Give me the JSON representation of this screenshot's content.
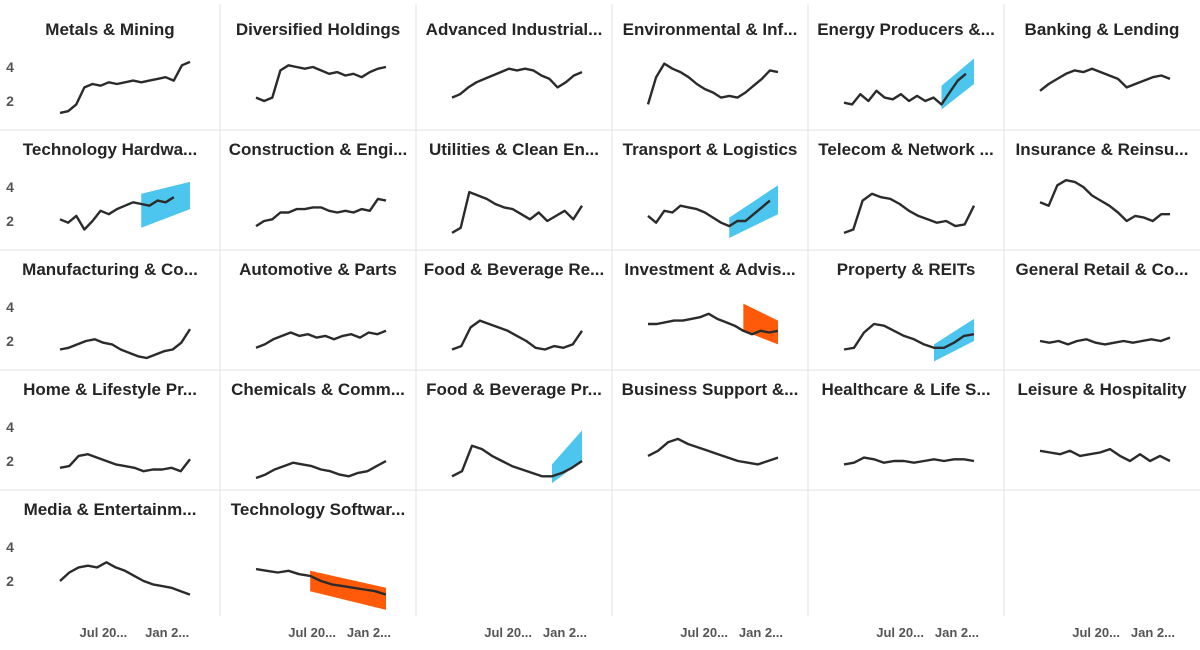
{
  "colors": {
    "line": "#2b2b2b",
    "forecast_up": "#4cc6ee",
    "forecast_down": "#ff5a0a",
    "divider": "#e3e3e3",
    "text": "#252525",
    "axis_text": "#555555"
  },
  "chart_data": {
    "type": "line",
    "layout": "small-multiples",
    "columns": 6,
    "y_ticks": [
      "4",
      "2"
    ],
    "x_ticks": [
      "Jul 20...",
      "Jan 2..."
    ],
    "x_range": [
      "2023-01",
      "2024-04"
    ],
    "ylim": [
      1,
      5
    ],
    "grid": false,
    "panels": [
      {
        "title": "Metals & Mining",
        "y": [
          1.3,
          1.4,
          1.8,
          2.8,
          3.0,
          2.9,
          3.1,
          3.0,
          3.1,
          3.2,
          3.1,
          3.2,
          3.3,
          3.4,
          3.2,
          4.1,
          4.3
        ]
      },
      {
        "title": "Diversified Holdings",
        "y": [
          2.2,
          2.0,
          2.2,
          3.8,
          4.1,
          4.0,
          3.9,
          4.0,
          3.8,
          3.6,
          3.7,
          3.5,
          3.6,
          3.4,
          3.7,
          3.9,
          4.0
        ]
      },
      {
        "title": "Advanced Industrial...",
        "y": [
          2.2,
          2.4,
          2.8,
          3.1,
          3.3,
          3.5,
          3.7,
          3.9,
          3.8,
          3.9,
          3.8,
          3.5,
          3.3,
          2.8,
          3.1,
          3.5,
          3.7
        ]
      },
      {
        "title": "Environmental & Inf...",
        "y": [
          1.8,
          3.4,
          4.2,
          3.9,
          3.7,
          3.4,
          3.0,
          2.7,
          2.5,
          2.2,
          2.3,
          2.2,
          2.5,
          2.9,
          3.3,
          3.8,
          3.7
        ]
      },
      {
        "title": "Energy Producers &...",
        "y": [
          1.9,
          1.8,
          2.4,
          2.0,
          2.6,
          2.2,
          2.1,
          2.4,
          2.0,
          2.3,
          2.0,
          2.2,
          1.8,
          2.5,
          3.2,
          3.6
        ],
        "forecast": {
          "start": 12,
          "end": 16,
          "lo": [
            1.5,
            3.0
          ],
          "hi": [
            2.9,
            4.5
          ],
          "dir": "up"
        }
      },
      {
        "title": "Banking & Lending",
        "y": [
          2.6,
          3.0,
          3.3,
          3.6,
          3.8,
          3.7,
          3.9,
          3.7,
          3.5,
          3.3,
          2.8,
          3.0,
          3.2,
          3.4,
          3.5,
          3.3
        ]
      },
      {
        "title": "Technology Hardwa...",
        "y": [
          2.1,
          1.9,
          2.3,
          1.5,
          2.0,
          2.6,
          2.4,
          2.7,
          2.9,
          3.1,
          3.0,
          2.9,
          3.2,
          3.1,
          3.4
        ],
        "forecast": {
          "start": 10,
          "end": 16,
          "lo": [
            1.6,
            2.7
          ],
          "hi": [
            3.6,
            4.3
          ],
          "dir": "up"
        }
      },
      {
        "title": "Construction & Engi...",
        "y": [
          1.7,
          2.0,
          2.1,
          2.5,
          2.5,
          2.7,
          2.7,
          2.8,
          2.8,
          2.6,
          2.5,
          2.6,
          2.5,
          2.7,
          2.6,
          3.3,
          3.2
        ]
      },
      {
        "title": "Utilities & Clean En...",
        "y": [
          1.3,
          1.6,
          3.7,
          3.5,
          3.3,
          3.0,
          2.8,
          2.7,
          2.4,
          2.1,
          2.5,
          2.0,
          2.3,
          2.6,
          2.1,
          2.9
        ]
      },
      {
        "title": "Transport & Logistics",
        "y": [
          2.3,
          1.9,
          2.6,
          2.5,
          2.9,
          2.8,
          2.7,
          2.5,
          2.2,
          1.9,
          1.7,
          2.0,
          2.0,
          2.4,
          2.8,
          3.2
        ],
        "forecast": {
          "start": 10,
          "end": 16,
          "lo": [
            1.0,
            2.4
          ],
          "hi": [
            2.2,
            4.1
          ],
          "dir": "up"
        }
      },
      {
        "title": "Telecom & Network ...",
        "y": [
          1.3,
          1.5,
          3.2,
          3.6,
          3.4,
          3.3,
          3.0,
          2.6,
          2.3,
          2.1,
          1.9,
          2.0,
          1.7,
          1.8,
          2.9
        ]
      },
      {
        "title": "Insurance & Reinsu...",
        "y": [
          3.1,
          2.9,
          4.1,
          4.4,
          4.3,
          4.0,
          3.5,
          3.2,
          2.9,
          2.5,
          2.0,
          2.3,
          2.2,
          2.0,
          2.4,
          2.4
        ]
      },
      {
        "title": "Manufacturing & Co...",
        "y": [
          1.5,
          1.6,
          1.8,
          2.0,
          2.1,
          1.9,
          1.8,
          1.5,
          1.3,
          1.1,
          1.0,
          1.2,
          1.4,
          1.5,
          1.9,
          2.7
        ]
      },
      {
        "title": "Automotive & Parts",
        "y": [
          1.6,
          1.8,
          2.1,
          2.3,
          2.5,
          2.3,
          2.4,
          2.2,
          2.3,
          2.1,
          2.3,
          2.4,
          2.2,
          2.5,
          2.4,
          2.6
        ]
      },
      {
        "title": "Food & Beverage Re...",
        "y": [
          1.5,
          1.7,
          2.8,
          3.2,
          3.0,
          2.8,
          2.6,
          2.3,
          2.0,
          1.6,
          1.5,
          1.7,
          1.6,
          1.8,
          2.6
        ]
      },
      {
        "title": "Investment & Advis...",
        "y": [
          3.0,
          3.0,
          3.1,
          3.2,
          3.2,
          3.3,
          3.4,
          3.6,
          3.3,
          3.1,
          2.9,
          2.6,
          2.4,
          2.6,
          2.5,
          2.6
        ],
        "forecast": {
          "start": 11,
          "end": 15,
          "lo": [
            2.6,
            1.8
          ],
          "hi": [
            4.2,
            3.2
          ],
          "dir": "down"
        }
      },
      {
        "title": "Property & REITs",
        "y": [
          1.5,
          1.6,
          2.5,
          3.0,
          2.9,
          2.6,
          2.3,
          2.1,
          1.8,
          1.6,
          1.6,
          1.9,
          2.3,
          2.4
        ],
        "forecast": {
          "start": 9,
          "end": 13,
          "lo": [
            0.8,
            2.0
          ],
          "hi": [
            1.8,
            3.3
          ],
          "dir": "up"
        }
      },
      {
        "title": "General Retail & Co...",
        "y": [
          2.0,
          1.9,
          2.0,
          1.8,
          2.0,
          2.1,
          1.9,
          1.8,
          1.9,
          2.0,
          1.9,
          2.0,
          2.1,
          2.0,
          2.2
        ]
      },
      {
        "title": "Home & Lifestyle Pr...",
        "y": [
          1.6,
          1.7,
          2.3,
          2.4,
          2.2,
          2.0,
          1.8,
          1.7,
          1.6,
          1.4,
          1.5,
          1.5,
          1.6,
          1.4,
          2.1
        ]
      },
      {
        "title": "Chemicals & Comm...",
        "y": [
          1.0,
          1.2,
          1.5,
          1.7,
          1.9,
          1.8,
          1.7,
          1.5,
          1.4,
          1.2,
          1.1,
          1.3,
          1.4,
          1.7,
          2.0
        ]
      },
      {
        "title": "Food & Beverage Pr...",
        "y": [
          1.1,
          1.4,
          2.9,
          2.7,
          2.3,
          2.0,
          1.7,
          1.5,
          1.3,
          1.1,
          1.1,
          1.3,
          1.6,
          2.0
        ],
        "forecast": {
          "start": 10,
          "end": 13,
          "lo": [
            0.7,
            2.0
          ],
          "hi": [
            1.8,
            3.8
          ],
          "dir": "up"
        }
      },
      {
        "title": "Business Support &...",
        "y": [
          2.3,
          2.6,
          3.1,
          3.3,
          3.0,
          2.8,
          2.6,
          2.4,
          2.2,
          2.0,
          1.9,
          1.8,
          2.0,
          2.2
        ]
      },
      {
        "title": "Healthcare & Life S...",
        "y": [
          1.8,
          1.9,
          2.2,
          2.1,
          1.9,
          2.0,
          2.0,
          1.9,
          2.0,
          2.1,
          2.0,
          2.1,
          2.1,
          2.0
        ]
      },
      {
        "title": "Leisure & Hospitality",
        "y": [
          2.6,
          2.5,
          2.4,
          2.6,
          2.3,
          2.4,
          2.5,
          2.7,
          2.3,
          2.0,
          2.4,
          2.0,
          2.3,
          2.0
        ]
      },
      {
        "title": "Media & Entertainm...",
        "y": [
          2.0,
          2.5,
          2.8,
          2.9,
          2.8,
          3.1,
          2.8,
          2.6,
          2.3,
          2.0,
          1.8,
          1.7,
          1.6,
          1.4,
          1.2
        ]
      },
      {
        "title": "Technology Softwar...",
        "y": [
          2.7,
          2.6,
          2.5,
          2.6,
          2.4,
          2.3,
          2.0,
          1.8,
          1.7,
          1.6,
          1.5,
          1.4,
          1.2
        ],
        "forecast": {
          "start": 5,
          "end": 12,
          "lo": [
            1.4,
            0.3
          ],
          "hi": [
            2.6,
            1.6
          ],
          "dir": "down"
        }
      }
    ]
  }
}
